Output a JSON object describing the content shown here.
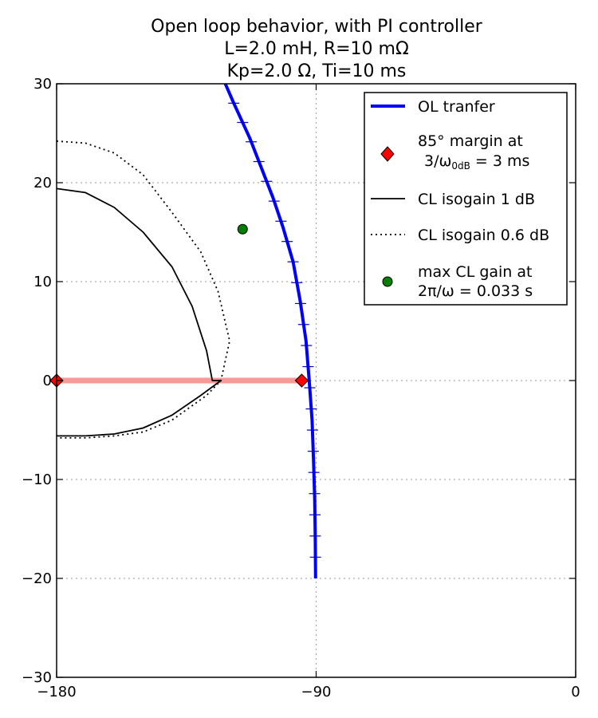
{
  "chart_data": {
    "type": "line",
    "title_lines": [
      "Open loop behavior, with PI controller",
      "L=2.0 mH, R=10 mΩ",
      "Kp=2.0 Ω, Ti=10 ms"
    ],
    "xlabel": "",
    "ylabel": "",
    "xlim": [
      -180,
      0
    ],
    "ylim": [
      -30,
      30
    ],
    "x_ticks": [
      -180,
      -90,
      0
    ],
    "y_ticks": [
      -30,
      -20,
      -10,
      0,
      10,
      20,
      30
    ],
    "grid": true,
    "legend_position": "top-right",
    "series": [
      {
        "name": "OL tranfer",
        "color": "#0000ff",
        "style": "solid-thick",
        "points": [
          [
            -90.2,
            -20
          ],
          [
            -90.3,
            -16
          ],
          [
            -90.5,
            -12
          ],
          [
            -90.9,
            -8
          ],
          [
            -91.4,
            -4
          ],
          [
            -92.4,
            0
          ],
          [
            -93.5,
            4
          ],
          [
            -95.5,
            8
          ],
          [
            -98,
            12
          ],
          [
            -101.5,
            15.5
          ],
          [
            -105,
            18.5
          ],
          [
            -109,
            21.5
          ],
          [
            -113,
            24.5
          ],
          [
            -118.5,
            28
          ],
          [
            -121.5,
            30
          ]
        ]
      },
      {
        "name": "CL isogain 1 dB",
        "color": "#000000",
        "style": "solid",
        "points": [
          [
            -180,
            19.4
          ],
          [
            -170,
            19
          ],
          [
            -160,
            17.5
          ],
          [
            -150,
            15
          ],
          [
            -140,
            11.5
          ],
          [
            -133,
            7.5
          ],
          [
            -128,
            3
          ],
          [
            -126,
            0
          ],
          [
            -123,
            0
          ],
          [
            -130,
            -1.5
          ],
          [
            -140,
            -3.5
          ],
          [
            -150,
            -4.8
          ],
          [
            -160,
            -5.4
          ],
          [
            -170,
            -5.6
          ],
          [
            -180,
            -5.6
          ]
        ]
      },
      {
        "name": "CL isogain 0.6 dB",
        "color": "#000000",
        "style": "dotted",
        "points": [
          [
            -180,
            24.2
          ],
          [
            -170,
            24
          ],
          [
            -160,
            23
          ],
          [
            -150,
            20.8
          ],
          [
            -140,
            17
          ],
          [
            -130,
            13
          ],
          [
            -124,
            9
          ],
          [
            -120,
            4
          ],
          [
            -123,
            0
          ],
          [
            -128,
            -1.5
          ],
          [
            -140,
            -4
          ],
          [
            -150,
            -5.2
          ],
          [
            -160,
            -5.6
          ],
          [
            -170,
            -5.8
          ],
          [
            -180,
            -5.8
          ]
        ]
      }
    ],
    "markers": [
      {
        "name": "85° margin at 3/ω0dB = 3 ms",
        "color": "#ff0000",
        "shape": "diamond",
        "points": [
          [
            -180,
            0
          ],
          [
            -95,
            0
          ]
        ]
      },
      {
        "name": "max CL gain at 2π/ω = 0.033 s",
        "color": "#007f00",
        "shape": "circle",
        "points": [
          [
            -115.5,
            15.3
          ]
        ]
      }
    ],
    "annotations": [
      {
        "type": "band",
        "color": "#f59999",
        "from": [
          -180,
          0
        ],
        "to": [
          -95,
          0
        ]
      }
    ],
    "legend_entries": [
      {
        "key": "line-blue",
        "lines": [
          "OL tranfer"
        ]
      },
      {
        "key": "diamond-red",
        "lines": [
          "85° margin at",
          "3/ω",
          "0dB",
          " = 3 ms"
        ]
      },
      {
        "key": "line-black",
        "lines": [
          "CL isogain 1 dB"
        ]
      },
      {
        "key": "dotted-black",
        "lines": [
          "CL isogain 0.6 dB"
        ]
      },
      {
        "key": "circle-green",
        "lines": [
          "max CL gain at",
          "2π/ω = 0.033 s"
        ]
      }
    ]
  }
}
